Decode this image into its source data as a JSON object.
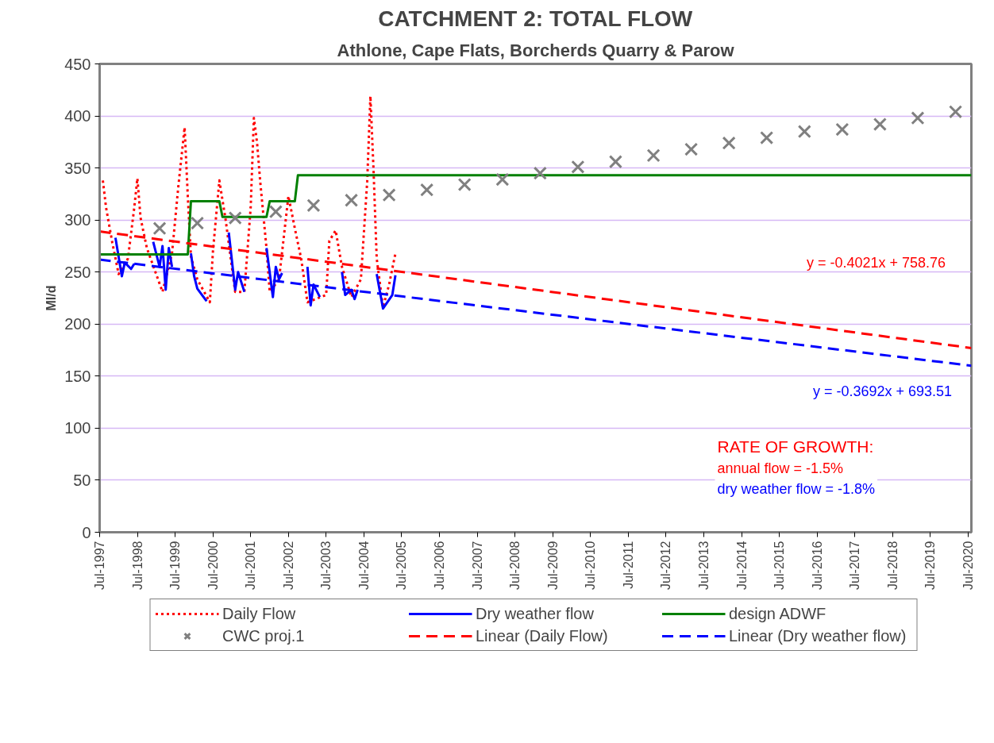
{
  "chart_data": {
    "type": "line",
    "title": "CATCHMENT 2: TOTAL FLOW",
    "subtitle": "Athlone, Cape Flats, Borcherds Quarry & Parow",
    "ylabel": "Ml/d",
    "xlim": [
      "1997-07",
      "2020-08"
    ],
    "ylim": [
      0,
      450
    ],
    "yticks": [
      0,
      50,
      100,
      150,
      200,
      250,
      300,
      350,
      400,
      450
    ],
    "xticks": [
      {
        "value": "1997-07",
        "label": "Jul-1997"
      },
      {
        "value": "1998-07",
        "label": "Jul-1998"
      },
      {
        "value": "1999-07",
        "label": "Jul-1999"
      },
      {
        "value": "2000-07",
        "label": "Jul-2000"
      },
      {
        "value": "2001-07",
        "label": "Jul-2001"
      },
      {
        "value": "2002-07",
        "label": "Jul-2002"
      },
      {
        "value": "2003-07",
        "label": "Jul-2003"
      },
      {
        "value": "2004-07",
        "label": "Jul-2004"
      },
      {
        "value": "2005-07",
        "label": "Jul-2005"
      },
      {
        "value": "2006-07",
        "label": "Jul-2006"
      },
      {
        "value": "2007-07",
        "label": "Jul-2007"
      },
      {
        "value": "2008-07",
        "label": "Jul-2008"
      },
      {
        "value": "2009-07",
        "label": "Jul-2009"
      },
      {
        "value": "2010-07",
        "label": "Jul-2010"
      },
      {
        "value": "2011-07",
        "label": "Jul-2011"
      },
      {
        "value": "2012-07",
        "label": "Jul-2012"
      },
      {
        "value": "2013-07",
        "label": "Jul-2013"
      },
      {
        "value": "2014-07",
        "label": "Jul-2014"
      },
      {
        "value": "2015-07",
        "label": "Jul-2015"
      },
      {
        "value": "2016-07",
        "label": "Jul-2016"
      },
      {
        "value": "2017-07",
        "label": "Jul-2017"
      },
      {
        "value": "2018-07",
        "label": "Jul-2018"
      },
      {
        "value": "2019-07",
        "label": "Jul-2019"
      },
      {
        "value": "2020-07",
        "label": "Jul-2020"
      }
    ],
    "grid": "y",
    "legend": "bottom",
    "series": [
      {
        "name": "Daily Flow",
        "color": "#ff0000",
        "line_style": "dotted",
        "x": [
          "1997-08",
          "1997-09",
          "1997-11",
          "1998-01",
          "1998-04",
          "1998-06",
          "1998-07",
          "1998-08",
          "1998-10",
          "1999-03",
          "1999-06",
          "1999-08",
          "1999-10",
          "1999-11",
          "1999-12",
          "2000-02",
          "2000-06",
          "2000-07",
          "2000-09",
          "2000-11",
          "2001-02",
          "2001-05",
          "2001-07",
          "2001-08",
          "2001-09",
          "2001-10",
          "2001-12",
          "2002-01",
          "2002-04",
          "2002-07",
          "2002-09",
          "2002-11",
          "2003-01",
          "2003-07",
          "2003-08",
          "2003-10",
          "2003-12",
          "2004-03",
          "2004-06",
          "2004-08",
          "2004-09",
          "2004-10",
          "2004-11",
          "2005-01",
          "2005-03",
          "2005-05"
        ],
        "values": [
          338,
          312,
          278,
          248,
          263,
          312,
          340,
          302,
          273,
          231,
          268,
          332,
          389,
          322,
          265,
          243,
          221,
          270,
          338,
          300,
          231,
          231,
          312,
          398,
          374,
          337,
          273,
          231,
          243,
          323,
          292,
          263,
          221,
          228,
          280,
          290,
          255,
          226,
          243,
          337,
          419,
          349,
          263,
          216,
          238,
          268
        ]
      },
      {
        "name": "Dry weather flow",
        "color": "#0000ff",
        "line_style": "solid",
        "x": [
          "1997-12",
          "1998-02",
          "1998-03",
          "1998-05",
          "1998-06",
          "1998-09",
          "1998-12",
          "1999-02",
          "1999-03",
          "1999-04",
          "1999-05",
          "1999-06",
          "1999-09",
          "1999-12",
          "2000-01",
          "2000-02",
          "2000-05",
          "2000-09",
          "2000-12",
          "2001-02",
          "2001-03",
          "2001-05",
          "2001-09",
          "2001-12",
          "2002-02",
          "2002-03",
          "2002-04",
          "2002-05",
          "2002-08",
          "2003-01",
          "2003-02",
          "2003-03",
          "2003-05",
          "2003-08",
          "2003-12",
          "2004-01",
          "2004-03",
          "2004-04",
          "2004-05",
          "2004-08",
          "2004-11",
          "2005-01",
          "2005-04",
          "2005-05"
        ],
        "values": [
          283,
          246,
          259,
          253,
          258,
          null,
          279,
          255,
          275,
          233,
          273,
          255,
          null,
          268,
          246,
          234,
          222,
          null,
          288,
          233,
          250,
          231,
          null,
          273,
          226,
          255,
          243,
          249,
          null,
          255,
          218,
          238,
          226,
          null,
          250,
          228,
          233,
          224,
          233,
          null,
          248,
          215,
          228,
          247
        ]
      },
      {
        "name": "design ADWF",
        "color": "#008000",
        "line_style": "solid",
        "x": [
          "1997-07",
          "1999-11",
          "1999-12",
          "2000-09",
          "2000-10",
          "2001-12",
          "2002-01",
          "2002-09",
          "2002-10",
          "2020-08"
        ],
        "values": [
          267,
          267,
          318,
          318,
          303,
          303,
          318,
          318,
          343,
          343
        ]
      },
      {
        "name": "CWC proj.1",
        "type": "scatter",
        "marker": "cross",
        "color": "#808080",
        "x": [
          "1999-02",
          "2000-02",
          "2001-02",
          "2002-03",
          "2003-03",
          "2004-03",
          "2005-03",
          "2006-03",
          "2007-03",
          "2008-03",
          "2009-03",
          "2010-03",
          "2011-03",
          "2012-03",
          "2013-03",
          "2014-03",
          "2015-03",
          "2016-03",
          "2017-03",
          "2018-03",
          "2019-03",
          "2020-03"
        ],
        "values": [
          292,
          297,
          302,
          308,
          314,
          319,
          324,
          329,
          334,
          339,
          345,
          351,
          356,
          362,
          368,
          374,
          379,
          385,
          387,
          392,
          398,
          404
        ]
      },
      {
        "name": "Linear (Daily Flow)",
        "color": "#ff0000",
        "line_style": "dashed",
        "x": [
          "1997-07",
          "2020-08"
        ],
        "values": [
          289,
          177
        ]
      },
      {
        "name": "Linear (Dry weather flow)",
        "color": "#0000ff",
        "line_style": "dashed",
        "x": [
          "1997-07",
          "2020-08"
        ],
        "values": [
          262,
          160
        ]
      }
    ],
    "annotations": [
      "y = -0.4021x + 758.76",
      "y = -0.3692x + 693.51",
      "RATE OF GROWTH:",
      "annual flow = -1.5%",
      "dry weather flow = -1.8%"
    ]
  }
}
